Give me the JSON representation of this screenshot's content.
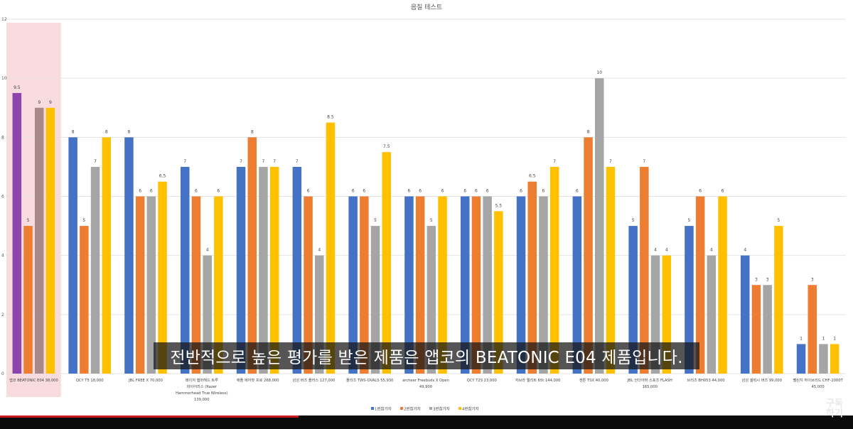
{
  "chart_data": {
    "type": "bar",
    "title": "음질 테스트",
    "ylim": [
      0,
      12
    ],
    "yticks": [
      0,
      2,
      4,
      6,
      8,
      10,
      12
    ],
    "grid": true,
    "legend_position": "bottom",
    "categories": [
      [
        "앱코 BEATONIC E04 38,000"
      ],
      [
        "QCY T5 18,000"
      ],
      [
        "JBL FREE X 70,000"
      ],
      [
        "레이저 햄머헤드 트루",
        "와이어리스 (Razer",
        "Hammerhead True Wireless)",
        "139,000"
      ],
      [
        "애플 에어팟 프로 268,000"
      ],
      [
        "삼성 버즈 플러스 127,000"
      ],
      [
        "플리츠 TWS-OVALS 55,930"
      ],
      [
        "archeer Freebuds X Open",
        "49,900"
      ],
      [
        "QCY T2S 23,000"
      ],
      [
        "자브라 엘리트 65t 144,000"
      ],
      [
        "젠튼 TSX 40,000"
      ],
      [
        "JBL 언더아머 스포츠 FLASH",
        "165,000"
      ],
      [
        "브리츠 BH053 44,000"
      ],
      [
        "삼성 갤럭시 버즈 99,000"
      ],
      [
        "펠린지 하이브리드 CHF-2000T",
        "45,000"
      ]
    ],
    "series": [
      {
        "name": "1번참가자",
        "color": "#4472c4",
        "values": [
          9.5,
          8,
          8,
          7,
          7,
          7,
          6,
          6,
          6,
          6,
          6,
          5,
          5,
          4,
          1
        ]
      },
      {
        "name": "2번참가자",
        "color": "#ed7d31",
        "values": [
          5,
          5,
          6,
          6,
          8,
          6,
          6,
          6,
          6,
          6.5,
          8,
          7,
          6,
          3,
          3
        ]
      },
      {
        "name": "3번참가자",
        "color": "#a5a5a5",
        "values": [
          9,
          7,
          6,
          4,
          7,
          4,
          5,
          5,
          6,
          6,
          10,
          4,
          4,
          3,
          1
        ]
      },
      {
        "name": "4번참가자",
        "color": "#ffc000",
        "values": [
          9,
          8,
          6.5,
          6,
          7,
          8.5,
          7.5,
          6,
          5.5,
          7,
          7,
          4,
          6,
          5,
          1
        ]
      }
    ],
    "highlight_color_first_bar": "#8e44ad",
    "highlighted_category_index": 0
  },
  "subtitle": "전반적으로 높은 평가를 받은 제품은 앱코의 BEATONIC E04 제품입니다.",
  "subscribe": [
    "구독",
    "하기"
  ]
}
